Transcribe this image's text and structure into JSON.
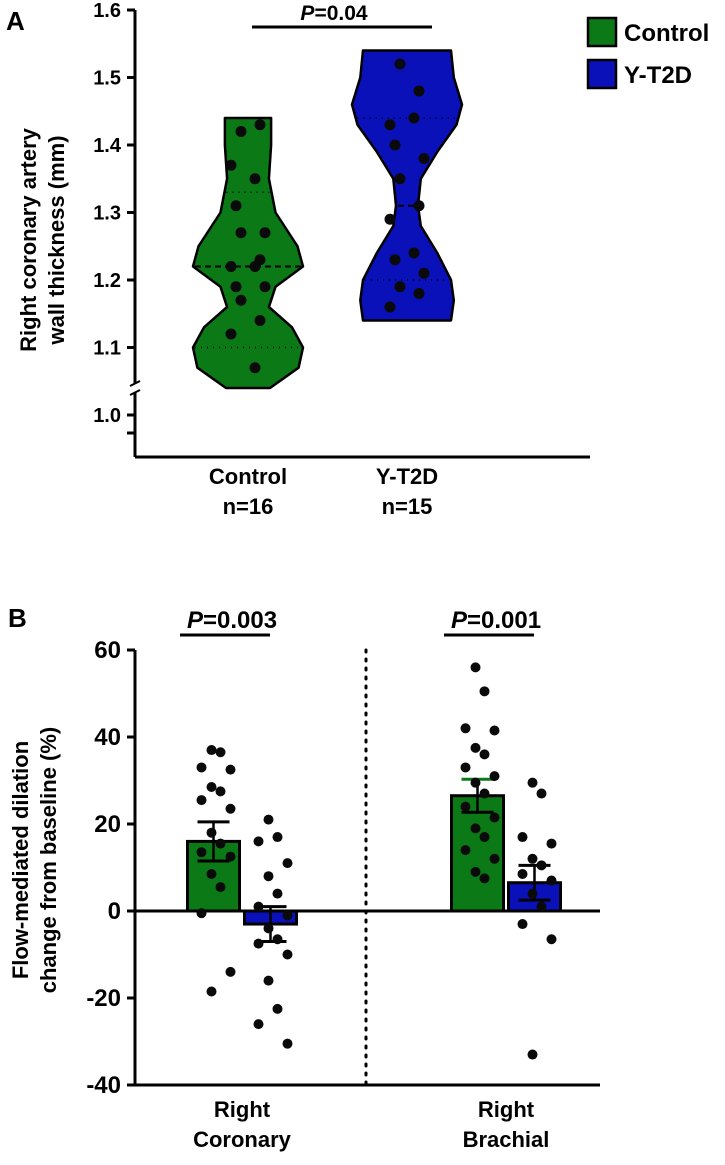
{
  "colors": {
    "control": "#0b7a16",
    "yt2d": "#0b11b9",
    "dot": "#0a0a0a",
    "axis": "#000000"
  },
  "chart_data": [
    {
      "panel": "A",
      "type": "violin",
      "ylabel_lines": [
        "Right coronary artery",
        "wall thickness (mm)"
      ],
      "ylim": [
        1.0,
        1.6
      ],
      "yticks": [
        "1.0",
        "1.1",
        "1.2",
        "1.3",
        "1.4",
        "1.5",
        "1.6"
      ],
      "axis_break": true,
      "legend": {
        "position": "top-right",
        "entries": [
          "Control",
          "Y-T2D"
        ]
      },
      "comparison": {
        "prefix": "P",
        "value": "=0.04"
      },
      "groups": [
        {
          "name": "Control",
          "n_label": "n=16",
          "median": 1.22,
          "q1": 1.1,
          "q3": 1.33,
          "min": 1.04,
          "max": 1.44,
          "points": [
            1.42,
            1.43,
            1.37,
            1.35,
            1.31,
            1.27,
            1.27,
            1.23,
            1.22,
            1.22,
            1.19,
            1.19,
            1.17,
            1.14,
            1.12,
            1.07
          ]
        },
        {
          "name": "Y-T2D",
          "n_label": "n=15",
          "median": 1.31,
          "q1": 1.2,
          "q3": 1.44,
          "min": 1.14,
          "max": 1.54,
          "points": [
            1.52,
            1.48,
            1.43,
            1.44,
            1.4,
            1.38,
            1.35,
            1.31,
            1.29,
            1.24,
            1.23,
            1.21,
            1.19,
            1.18,
            1.16
          ]
        }
      ]
    },
    {
      "panel": "B",
      "type": "bar",
      "ylabel_lines": [
        "Flow-mediated dilation",
        "change from baseline (%)"
      ],
      "ylim": [
        -40,
        60
      ],
      "yticks": [
        "-40",
        "-20",
        "0",
        "20",
        "40",
        "60"
      ],
      "categories": [
        {
          "label_lines": [
            "Right",
            "Coronary"
          ],
          "comparison": {
            "prefix": "P",
            "value": "=0.003"
          }
        },
        {
          "label_lines": [
            "Right",
            "Brachial"
          ],
          "comparison": {
            "prefix": "P",
            "value": "=0.001"
          }
        }
      ],
      "series": [
        {
          "name": "Control",
          "values": [
            16,
            26.5
          ],
          "sem": [
            4.5,
            3.8
          ],
          "points": [
            [
              37,
              36.5,
              33,
              32.5,
              28.5,
              27.5,
              25.5,
              23.5,
              18,
              15.5,
              13.5,
              12.5,
              8.5,
              5.5,
              -0.5,
              -14,
              -18.5
            ],
            [
              56,
              50.5,
              42,
              41.5,
              37.5,
              36,
              33,
              31,
              29.5,
              27,
              24,
              21.5,
              19,
              17,
              14,
              12,
              9,
              7.5
            ]
          ]
        },
        {
          "name": "Y-T2D",
          "values": [
            -3,
            6.5
          ],
          "sem": [
            4,
            4
          ],
          "points": [
            [
              21,
              17,
              16,
              11,
              8,
              4,
              1,
              -1,
              -4,
              -6.5,
              -7.5,
              -10,
              -16,
              -22.5,
              -26,
              -30.5
            ],
            [
              29.5,
              27,
              17,
              15.5,
              12,
              10.5,
              8.5,
              7,
              4,
              1,
              -3,
              -6.5,
              -33
            ]
          ]
        }
      ]
    }
  ]
}
